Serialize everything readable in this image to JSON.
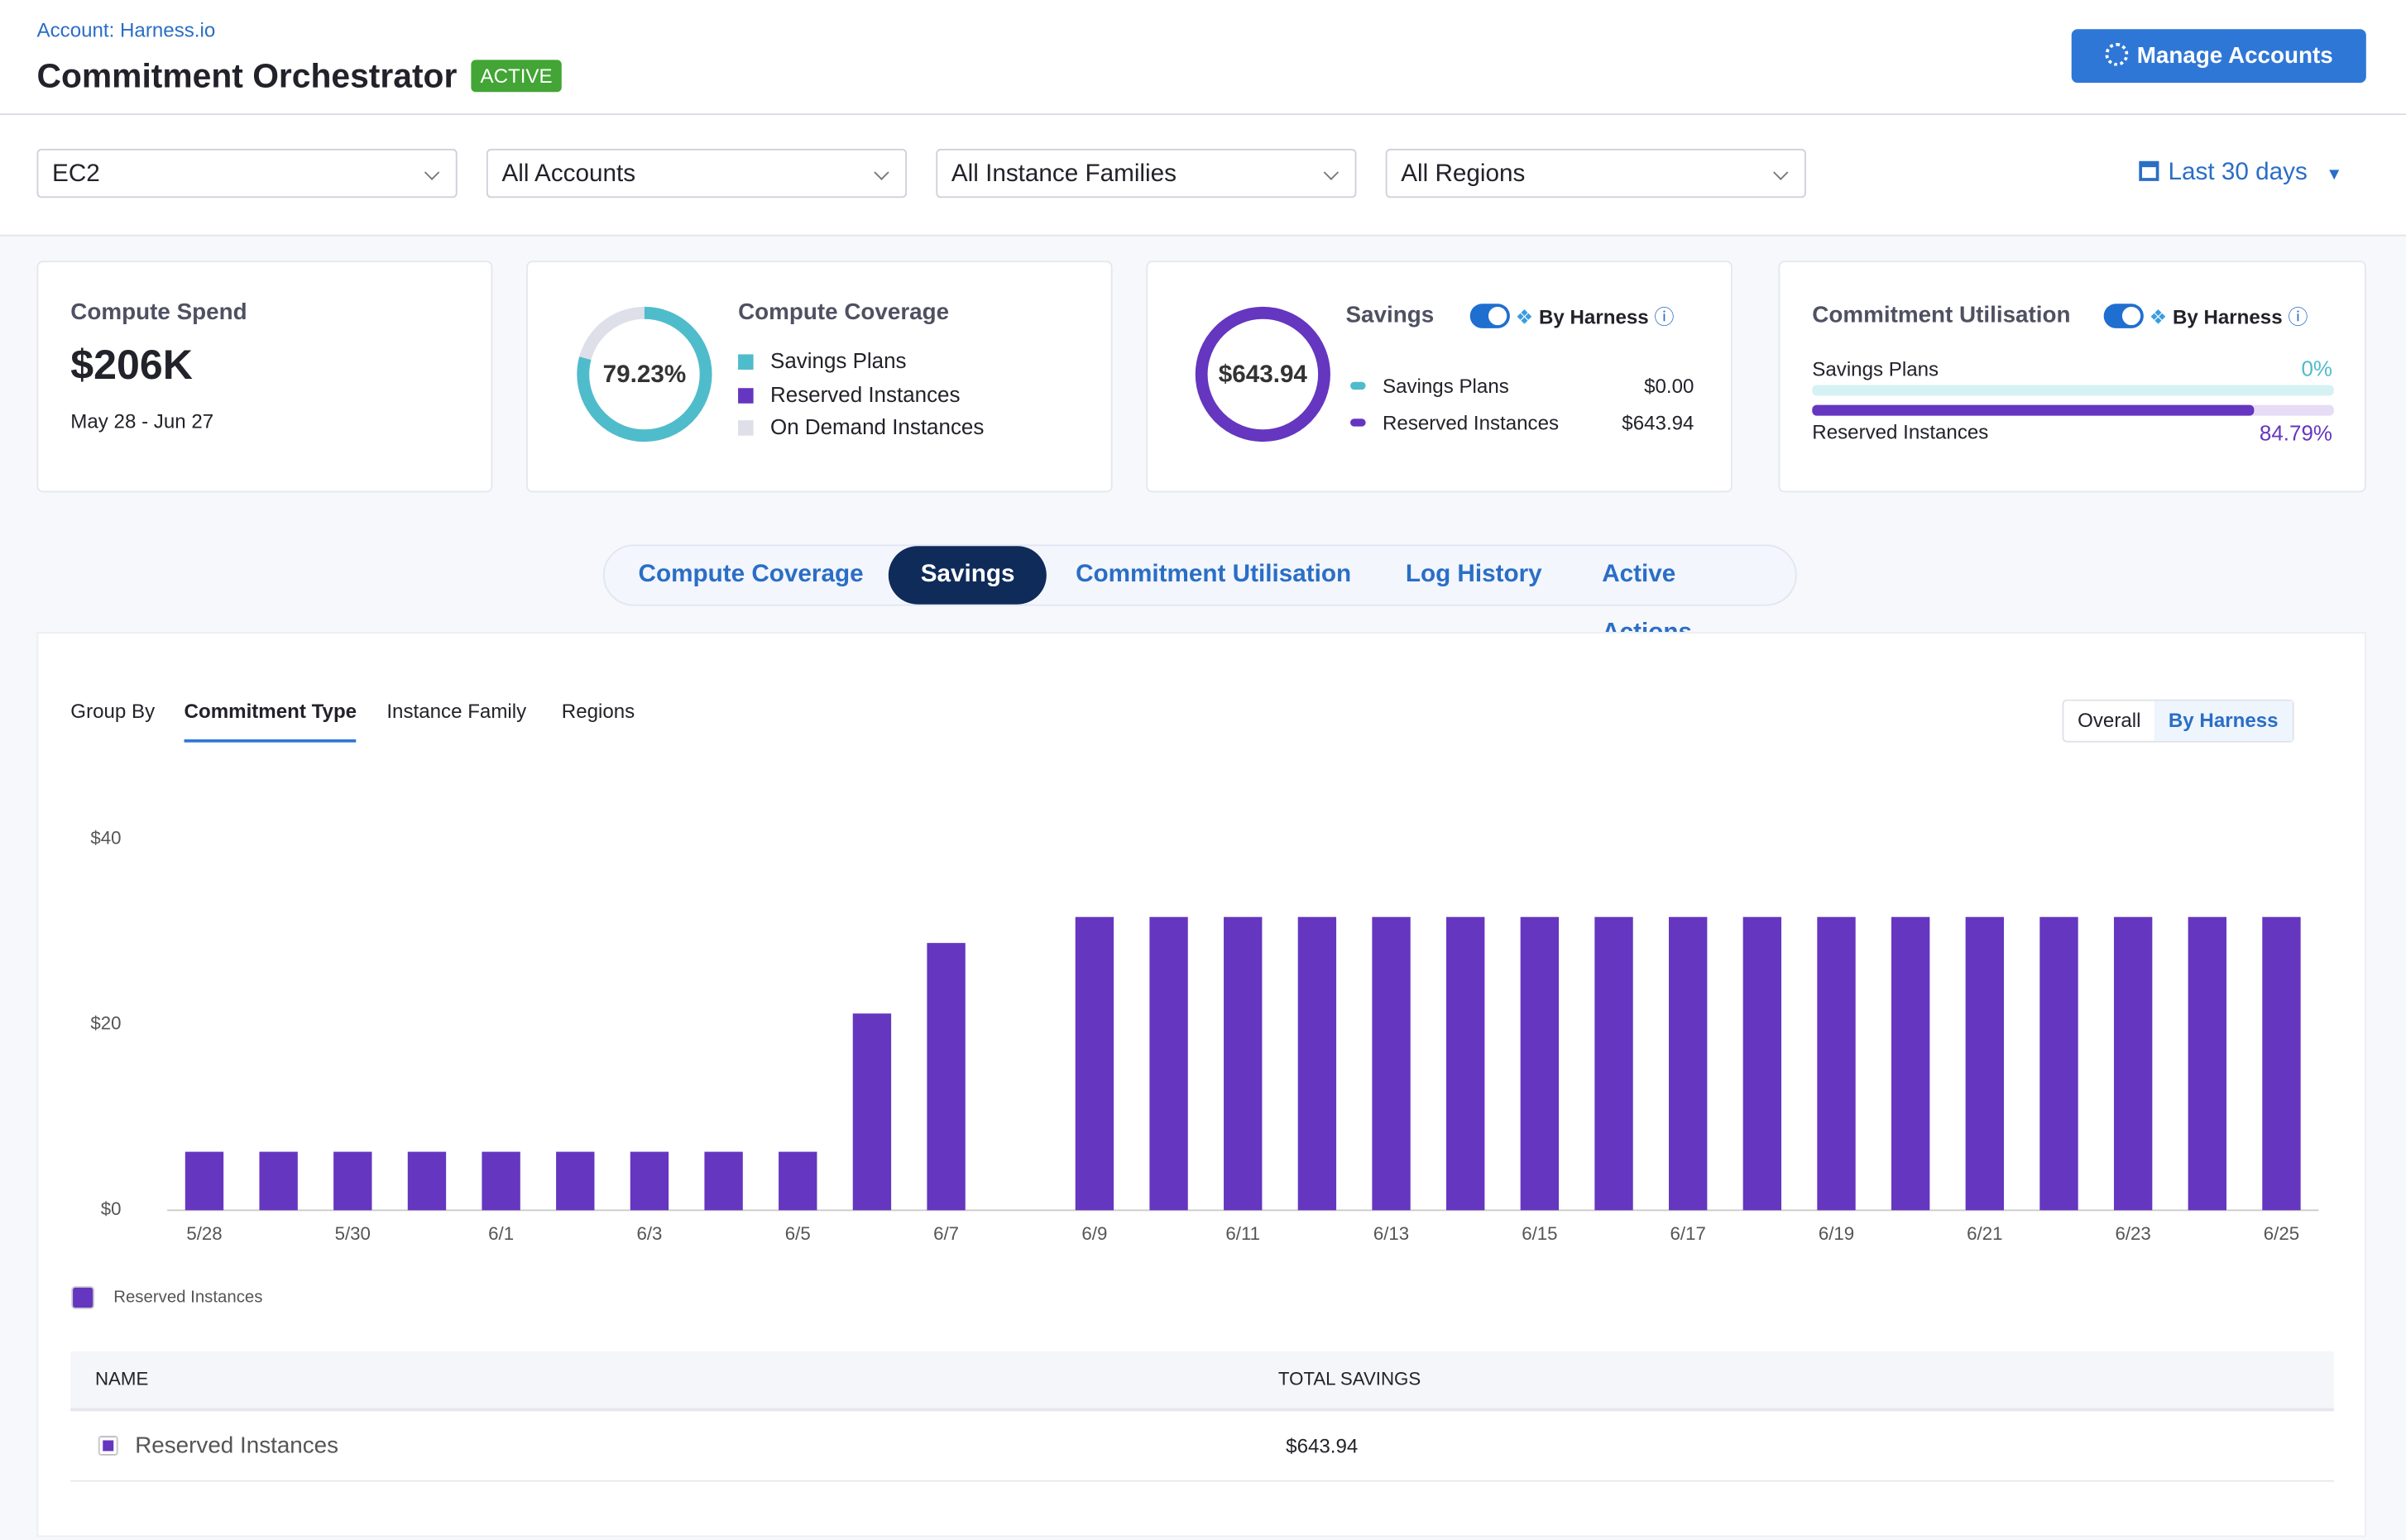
{
  "header": {
    "account": "Account: Harness.io",
    "title": "Commitment Orchestrator",
    "badge": "ACTIVE",
    "button": "Manage Accounts"
  },
  "filters": [
    "EC2",
    "All Accounts",
    "All Instance Families",
    "All Regions"
  ],
  "date_range": "Last 30 days",
  "cards": {
    "spend": {
      "title": "Compute Spend",
      "value": "$206K",
      "range": "May 28 - Jun 27"
    },
    "coverage": {
      "title": "Compute Coverage",
      "percent": "79.23%",
      "legend": [
        "Savings Plans",
        "Reserved Instances",
        "On Demand Instances"
      ]
    },
    "savings": {
      "title": "Savings",
      "toggle": "By Harness",
      "total": "$643.94",
      "rows": [
        [
          "Savings Plans",
          "$0.00"
        ],
        [
          "Reserved Instances",
          "$643.94"
        ]
      ]
    },
    "utilisation": {
      "title": "Commitment Utilisation",
      "toggle": "By Harness",
      "rows": [
        [
          "Savings Plans",
          "0%"
        ],
        [
          "Reserved Instances",
          "84.79%"
        ]
      ]
    }
  },
  "tabs": [
    "Compute Coverage",
    "Savings",
    "Commitment Utilisation",
    "Log History",
    "Active Actions"
  ],
  "group_by": {
    "label": "Group By",
    "options": [
      "Commitment Type",
      "Instance Family",
      "Regions"
    ]
  },
  "view": [
    "Overall",
    "By Harness"
  ],
  "chart_data": {
    "type": "bar",
    "categories": [
      "5/28",
      null,
      "5/30",
      null,
      "6/1",
      null,
      "6/3",
      null,
      "6/5",
      null,
      "6/7",
      null,
      "6/9",
      null,
      "6/11",
      null,
      "6/13",
      null,
      "6/15",
      null,
      "6/17",
      null,
      "6/19",
      null,
      "6/21",
      null,
      "6/23",
      null,
      "6/25"
    ],
    "series": [
      {
        "name": "Reserved Instances",
        "color": "#6536bf",
        "values": [
          6.3,
          6.3,
          6.3,
          6.3,
          6.3,
          6.3,
          6.3,
          6.3,
          6.3,
          21.2,
          28.8,
          0,
          31.6,
          31.6,
          31.6,
          31.6,
          31.6,
          31.6,
          31.6,
          31.6,
          31.6,
          31.6,
          31.6,
          31.6,
          31.6,
          31.6,
          31.6,
          31.6,
          31.6
        ]
      }
    ],
    "ylim": [
      0,
      40
    ],
    "yticks": [
      {
        "value": 0,
        "label": "$0"
      },
      {
        "value": 20,
        "label": "$20"
      },
      {
        "value": 40,
        "label": "$40"
      }
    ],
    "grid": false
  },
  "table": {
    "headers": [
      "NAME",
      "TOTAL SAVINGS"
    ],
    "rows": [
      [
        "Reserved Instances",
        "$643.94"
      ]
    ]
  }
}
